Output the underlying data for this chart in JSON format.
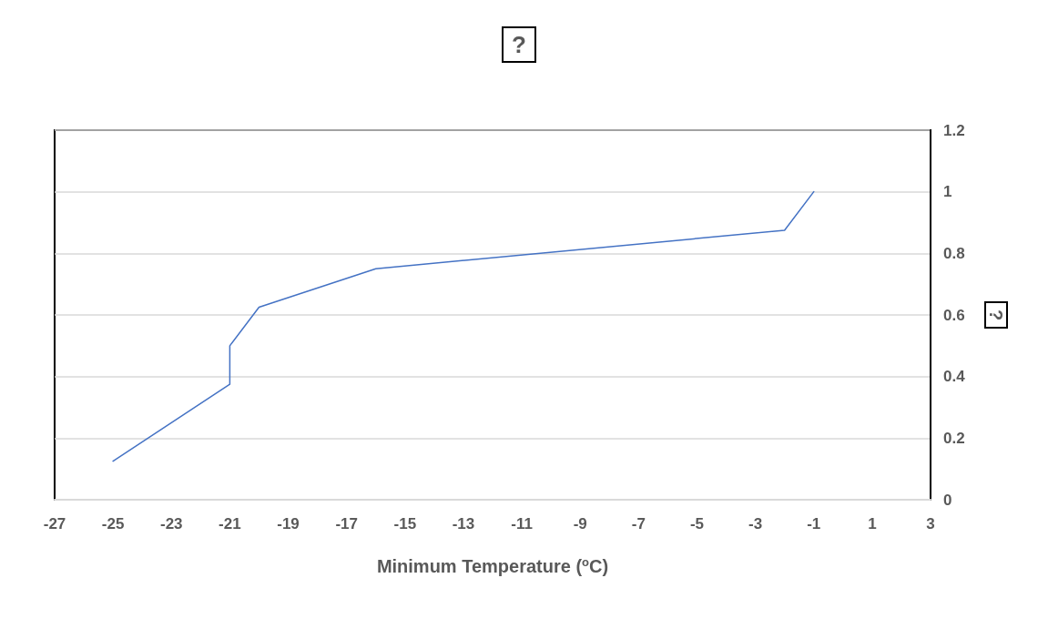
{
  "chart_data": {
    "type": "line",
    "title": "?",
    "xlabel": "Minimum Temperature ($^{o}$C)",
    "ylabel": "?",
    "x": [
      -25,
      -21,
      -21,
      -20,
      -16,
      -2,
      -1
    ],
    "series": [
      {
        "color": "#4472c4",
        "values": [
          0.125,
          0.375,
          0.5,
          0.625,
          0.75,
          0.875,
          1
        ]
      }
    ],
    "xlim": [
      -27,
      3
    ],
    "xticks": [
      -27,
      -25,
      -23,
      -21,
      -19,
      -17,
      -15,
      -13,
      -11,
      -9,
      -7,
      -5,
      -3,
      -1,
      1,
      3
    ],
    "ylim": [
      0,
      1.2
    ],
    "yticks": [
      0,
      0.2,
      0.4,
      0.6,
      0.8,
      1,
      1.2
    ],
    "grid": "y",
    "marker": "none",
    "line_style": "solid"
  }
}
